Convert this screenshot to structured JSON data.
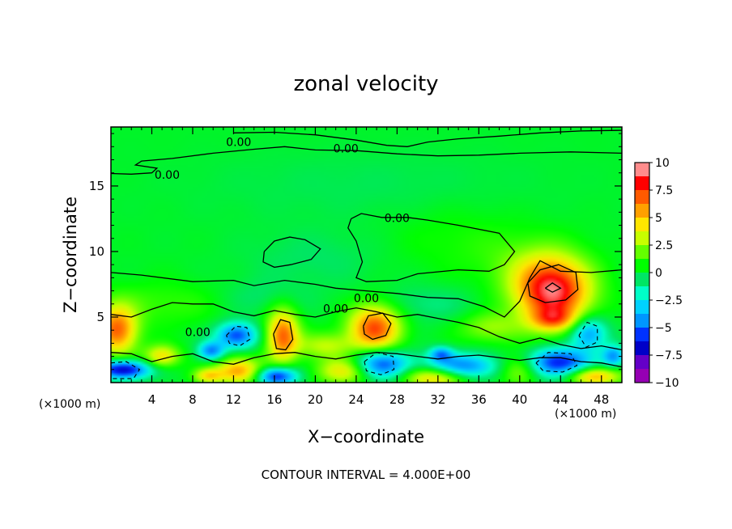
{
  "chart_data": {
    "type": "heatmap",
    "title": "zonal velocity",
    "xlabel": "X−coordinate",
    "ylabel": "Z−coordinate",
    "x_unit_left": "(×1000 m)",
    "x_unit_right": "(×1000 m)",
    "xlim": [
      0,
      50
    ],
    "ylim": [
      0,
      19.5
    ],
    "x_ticks": [
      4,
      8,
      12,
      16,
      20,
      24,
      28,
      32,
      36,
      40,
      44,
      48
    ],
    "x_tick_labels": [
      "4",
      "8",
      "12",
      "16",
      "20",
      "24",
      "28",
      "32",
      "36",
      "40",
      "44",
      "48"
    ],
    "y_ticks": [
      5,
      10,
      15
    ],
    "y_tick_labels": [
      "5",
      "10",
      "15"
    ],
    "colorbar": {
      "range": [
        -10,
        10
      ],
      "ticks": [
        10,
        7.5,
        5,
        2.5,
        0,
        -2.5,
        -5,
        -7.5,
        -10
      ],
      "tick_labels": [
        "10",
        "7.5",
        "5",
        "2.5",
        "0",
        "−2.5",
        "−5",
        "−7.5",
        "−10"
      ],
      "colors": [
        "#ff8c8c",
        "#ff0000",
        "#ff5a00",
        "#ffa000",
        "#ffe600",
        "#c8ff00",
        "#64ff00",
        "#00ff00",
        "#00e664",
        "#00ffc8",
        "#00d2ff",
        "#0096ff",
        "#0032ff",
        "#0000c8",
        "#6400c8",
        "#9600b4"
      ]
    },
    "contour_interval_text": "CONTOUR INTERVAL = 4.000E+00",
    "contour_labels": [
      {
        "text": "0.00",
        "x": 23,
        "y": 17.8
      },
      {
        "text": "0.00",
        "x": 12.5,
        "y": 18.3
      },
      {
        "text": "0.00",
        "x": 5.5,
        "y": 15.8
      },
      {
        "text": "0.00",
        "x": 28,
        "y": 12.5
      },
      {
        "text": "0.00",
        "x": 25,
        "y": 6.4
      },
      {
        "text": "0.00",
        "x": 22,
        "y": 5.6
      },
      {
        "text": "0.00",
        "x": 8.5,
        "y": 3.8
      }
    ],
    "features": [
      {
        "x": 43.2,
        "y": 7.0,
        "sx": 2.6,
        "sy": 1.8,
        "v": 9.5
      },
      {
        "x": 25.8,
        "y": 4.2,
        "sx": 1.8,
        "sy": 1.3,
        "v": 7.5
      },
      {
        "x": 16.8,
        "y": 3.6,
        "sx": 1.1,
        "sy": 1.4,
        "v": 7.0
      },
      {
        "x": 0.6,
        "y": 4.0,
        "sx": 1.4,
        "sy": 1.3,
        "v": 7.0
      },
      {
        "x": 5.0,
        "y": 2.0,
        "sx": 1.2,
        "sy": 0.6,
        "v": 4.5
      },
      {
        "x": 12.5,
        "y": 0.9,
        "sx": 1.6,
        "sy": 0.7,
        "v": 6.0
      },
      {
        "x": 9.5,
        "y": 0.5,
        "sx": 1.0,
        "sy": 0.4,
        "v": 4.0
      },
      {
        "x": 23.0,
        "y": 0.9,
        "sx": 2.0,
        "sy": 0.7,
        "v": 4.5
      },
      {
        "x": 31.8,
        "y": 0.4,
        "sx": 2.2,
        "sy": 0.6,
        "v": 5.5
      },
      {
        "x": 40.0,
        "y": 1.0,
        "sx": 1.4,
        "sy": 0.8,
        "v": 3.5
      },
      {
        "x": 47.2,
        "y": 0.5,
        "sx": 1.8,
        "sy": 0.5,
        "v": 6.0
      },
      {
        "x": 43.3,
        "y": 4.8,
        "sx": 1.5,
        "sy": 0.6,
        "v": 4.0
      },
      {
        "x": 1.2,
        "y": 1.0,
        "sx": 1.8,
        "sy": 0.5,
        "v": -8.0
      },
      {
        "x": 16.2,
        "y": 0.5,
        "sx": 1.4,
        "sy": 0.5,
        "v": -7.0
      },
      {
        "x": 12.3,
        "y": 3.6,
        "sx": 1.4,
        "sy": 0.7,
        "v": -6.0
      },
      {
        "x": 9.8,
        "y": 2.4,
        "sx": 0.9,
        "sy": 0.5,
        "v": -5.0
      },
      {
        "x": 26.3,
        "y": 1.4,
        "sx": 2.0,
        "sy": 0.8,
        "v": -6.5
      },
      {
        "x": 34.3,
        "y": 1.2,
        "sx": 2.6,
        "sy": 0.7,
        "v": -5.5
      },
      {
        "x": 43.8,
        "y": 1.5,
        "sx": 2.2,
        "sy": 0.8,
        "v": -7.0
      },
      {
        "x": 46.7,
        "y": 3.8,
        "sx": 1.3,
        "sy": 0.9,
        "v": -5.0
      },
      {
        "x": 32.3,
        "y": 2.2,
        "sx": 0.8,
        "sy": 0.4,
        "v": -4.0
      },
      {
        "x": 49.2,
        "y": 2.0,
        "sx": 0.8,
        "sy": 0.6,
        "v": -4.5
      },
      {
        "x": 21.0,
        "y": 2.8,
        "sx": 2.0,
        "sy": 0.7,
        "v": 3.0
      },
      {
        "x": 37.0,
        "y": 4.2,
        "sx": 2.0,
        "sy": 0.8,
        "v": 2.5
      },
      {
        "x": 5.0,
        "y": 6.0,
        "sx": 4.0,
        "sy": 1.2,
        "v": 1.2
      },
      {
        "x": 30.0,
        "y": 6.0,
        "sx": 4.0,
        "sy": 1.0,
        "v": -1.2
      },
      {
        "x": 15.0,
        "y": 6.5,
        "sx": 3.0,
        "sy": 1.0,
        "v": -0.9
      },
      {
        "x": 20.0,
        "y": 9.5,
        "sx": 5.0,
        "sy": 1.5,
        "v": -0.8
      },
      {
        "x": 34.0,
        "y": 11.0,
        "sx": 5.0,
        "sy": 2.0,
        "v": 0.8
      },
      {
        "x": 25.0,
        "y": 15.0,
        "sx": 12.0,
        "sy": 2.0,
        "v": -0.6
      },
      {
        "x": 40.0,
        "y": 9.0,
        "sx": 3.0,
        "sy": 1.5,
        "v": 1.0
      }
    ],
    "zero_contours": [
      [
        [
          12,
          19.05
        ],
        [
          16,
          19.1
        ],
        [
          20,
          18.9
        ],
        [
          24,
          18.5
        ],
        [
          27,
          18.1
        ],
        [
          29,
          18.0
        ],
        [
          31,
          18.35
        ],
        [
          34,
          18.6
        ],
        [
          38,
          18.8
        ],
        [
          42,
          19.05
        ],
        [
          46,
          19.2
        ],
        [
          50,
          19.25
        ]
      ],
      [
        [
          50,
          17.5
        ],
        [
          45,
          17.6
        ],
        [
          40,
          17.5
        ],
        [
          36,
          17.35
        ],
        [
          32,
          17.3
        ],
        [
          28,
          17.45
        ],
        [
          24,
          17.7
        ],
        [
          20,
          17.75
        ],
        [
          17,
          18.0
        ],
        [
          14,
          17.8
        ],
        [
          10,
          17.5
        ],
        [
          6,
          17.1
        ],
        [
          3,
          16.9
        ],
        [
          2.4,
          16.6
        ],
        [
          4.5,
          16.35
        ],
        [
          4.0,
          16.0
        ],
        [
          2,
          15.9
        ],
        [
          0,
          15.95
        ]
      ],
      [
        [
          23.5,
          12.5
        ],
        [
          24.5,
          12.9
        ],
        [
          26.5,
          12.6
        ],
        [
          29,
          12.6
        ],
        [
          31,
          12.4
        ],
        [
          34,
          12.0
        ],
        [
          38,
          11.4
        ],
        [
          39.5,
          10.0
        ],
        [
          38.5,
          9.0
        ],
        [
          37,
          8.5
        ],
        [
          34,
          8.6
        ],
        [
          30,
          8.3
        ],
        [
          28,
          7.8
        ],
        [
          25,
          7.7
        ],
        [
          24,
          8.0
        ],
        [
          24.6,
          9.2
        ],
        [
          24,
          10.8
        ],
        [
          23.2,
          11.8
        ],
        [
          23.5,
          12.5
        ]
      ],
      [
        [
          0,
          8.4
        ],
        [
          3,
          8.2
        ],
        [
          8,
          7.7
        ],
        [
          12,
          7.8
        ],
        [
          14,
          7.4
        ],
        [
          17,
          7.8
        ],
        [
          20,
          7.5
        ],
        [
          22,
          7.2
        ],
        [
          25,
          7.0
        ],
        [
          28,
          6.8
        ],
        [
          31,
          6.5
        ],
        [
          34,
          6.4
        ],
        [
          36.5,
          5.8
        ],
        [
          38.5,
          5.0
        ],
        [
          40,
          6.2
        ],
        [
          41,
          8.0
        ],
        [
          42,
          9.3
        ],
        [
          44,
          8.5
        ],
        [
          47,
          8.4
        ],
        [
          50,
          8.6
        ]
      ],
      [
        [
          0,
          5.2
        ],
        [
          2,
          5.0
        ],
        [
          4,
          5.6
        ],
        [
          6,
          6.1
        ],
        [
          8,
          6.0
        ],
        [
          10,
          6.0
        ],
        [
          12,
          5.4
        ],
        [
          14,
          5.1
        ],
        [
          16,
          5.5
        ],
        [
          18,
          5.2
        ],
        [
          20,
          5.0
        ],
        [
          22,
          5.4
        ],
        [
          24,
          5.7
        ],
        [
          26,
          5.4
        ],
        [
          28,
          5.0
        ],
        [
          30,
          5.2
        ],
        [
          32,
          4.9
        ],
        [
          34,
          4.6
        ],
        [
          36,
          4.2
        ],
        [
          38,
          3.5
        ],
        [
          40,
          3.0
        ],
        [
          42,
          3.4
        ],
        [
          44,
          2.9
        ],
        [
          46,
          2.6
        ],
        [
          48,
          2.8
        ],
        [
          50,
          2.5
        ]
      ],
      [
        [
          0,
          2.3
        ],
        [
          2,
          2.2
        ],
        [
          4,
          1.6
        ],
        [
          6,
          2.0
        ],
        [
          8,
          2.2
        ],
        [
          10,
          1.6
        ],
        [
          12,
          1.4
        ],
        [
          14,
          1.9
        ],
        [
          16,
          2.2
        ],
        [
          18,
          2.3
        ],
        [
          20,
          2.0
        ],
        [
          22,
          1.8
        ],
        [
          24,
          2.1
        ],
        [
          26,
          2.3
        ],
        [
          28,
          2.2
        ],
        [
          30,
          2.0
        ],
        [
          32,
          1.8
        ],
        [
          34,
          2.0
        ],
        [
          36,
          2.1
        ],
        [
          38,
          1.9
        ],
        [
          40,
          1.7
        ],
        [
          42,
          1.9
        ],
        [
          44,
          1.9
        ],
        [
          46,
          1.6
        ],
        [
          48,
          1.5
        ],
        [
          50,
          1.2
        ]
      ],
      [
        [
          15,
          10.0
        ],
        [
          16,
          10.8
        ],
        [
          17.5,
          11.1
        ],
        [
          19,
          10.9
        ],
        [
          20.5,
          10.2
        ],
        [
          19.6,
          9.4
        ],
        [
          17.6,
          9.0
        ],
        [
          16,
          8.8
        ],
        [
          14.9,
          9.2
        ],
        [
          15,
          10.0
        ]
      ],
      [
        [
          40.8,
          7.6
        ],
        [
          42.0,
          8.6
        ],
        [
          43.8,
          9.0
        ],
        [
          45.5,
          8.4
        ],
        [
          45.7,
          7.1
        ],
        [
          44.5,
          6.3
        ],
        [
          42.5,
          6.1
        ],
        [
          41.0,
          6.6
        ],
        [
          40.8,
          7.6
        ]
      ],
      [
        [
          24.7,
          4.3
        ],
        [
          25.2,
          5.1
        ],
        [
          26.6,
          5.3
        ],
        [
          27.4,
          4.5
        ],
        [
          26.9,
          3.6
        ],
        [
          25.6,
          3.3
        ],
        [
          24.8,
          3.7
        ],
        [
          24.7,
          4.3
        ]
      ],
      [
        [
          15.9,
          3.7
        ],
        [
          16.6,
          4.8
        ],
        [
          17.5,
          4.6
        ],
        [
          17.8,
          3.3
        ],
        [
          17.1,
          2.5
        ],
        [
          16.2,
          2.6
        ],
        [
          15.9,
          3.7
        ]
      ],
      [
        [
          42.5,
          7.2
        ],
        [
          43.2,
          7.6
        ],
        [
          44.0,
          7.2
        ],
        [
          43.2,
          6.9
        ],
        [
          42.5,
          7.2
        ]
      ]
    ],
    "negative_contours": [
      [
        [
          11.3,
          3.6
        ],
        [
          12.2,
          4.3
        ],
        [
          13.3,
          4.2
        ],
        [
          13.6,
          3.3
        ],
        [
          12.6,
          2.8
        ],
        [
          11.6,
          3.0
        ],
        [
          11.3,
          3.6
        ]
      ],
      [
        [
          24.8,
          1.6
        ],
        [
          26.0,
          2.3
        ],
        [
          27.6,
          2.0
        ],
        [
          27.7,
          1.0
        ],
        [
          26.4,
          0.6
        ],
        [
          25.0,
          0.9
        ],
        [
          24.8,
          1.6
        ]
      ],
      [
        [
          41.6,
          1.5
        ],
        [
          42.8,
          2.3
        ],
        [
          45.0,
          2.2
        ],
        [
          45.6,
          1.3
        ],
        [
          44.2,
          0.8
        ],
        [
          42.3,
          0.9
        ],
        [
          41.6,
          1.5
        ]
      ],
      [
        [
          45.8,
          3.6
        ],
        [
          46.6,
          4.6
        ],
        [
          47.6,
          4.3
        ],
        [
          47.6,
          3.1
        ],
        [
          46.5,
          2.7
        ],
        [
          45.8,
          3.6
        ]
      ],
      [
        [
          0,
          1.5
        ],
        [
          1.5,
          1.6
        ],
        [
          2.8,
          1.0
        ],
        [
          2.2,
          0.3
        ],
        [
          0,
          0.3
        ]
      ]
    ]
  },
  "colors": {
    "contour_line": "#000000",
    "frame": "#000000"
  }
}
